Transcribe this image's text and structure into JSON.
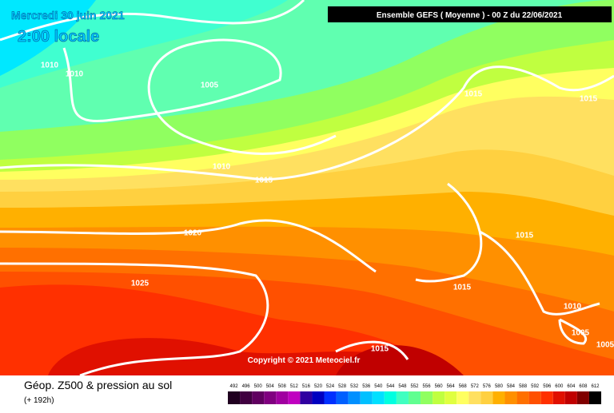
{
  "header": {
    "date": "Mercredi 30 juin 2021",
    "time": "2:00 locale",
    "run": "Ensemble GEFS  ( Moyenne )  - 00 Z du 22/06/2021"
  },
  "copyright": "Copyright © 2021 Meteociel.fr",
  "footer": {
    "title": "Géop. Z500 & pression au sol",
    "lead": "(+ 192h)"
  },
  "isobar_labels": [
    1010,
    1010,
    1005,
    1010,
    1015,
    1020,
    1025,
    1015,
    1015,
    1015,
    1015,
    1010,
    1005,
    1005,
    1015
  ],
  "scale": {
    "values": [
      492,
      496,
      500,
      504,
      508,
      512,
      516,
      520,
      524,
      528,
      532,
      536,
      540,
      544,
      548,
      552,
      556,
      560,
      564,
      568,
      572,
      576,
      580,
      584,
      588,
      592,
      596,
      600,
      604,
      608,
      612
    ],
    "colors": [
      "#200020",
      "#400040",
      "#600060",
      "#800080",
      "#a000a0",
      "#c000c0",
      "#3000a0",
      "#0000c0",
      "#0030ff",
      "#0060ff",
      "#0090ff",
      "#00c0ff",
      "#00e0ff",
      "#00ffe0",
      "#40ffc0",
      "#60ff90",
      "#90ff60",
      "#c0ff40",
      "#e0ff40",
      "#ffff60",
      "#ffe060",
      "#ffd040",
      "#ffb000",
      "#ff9000",
      "#ff7000",
      "#ff5000",
      "#ff3000",
      "#e01000",
      "#c00000",
      "#800000",
      "#000000"
    ]
  }
}
